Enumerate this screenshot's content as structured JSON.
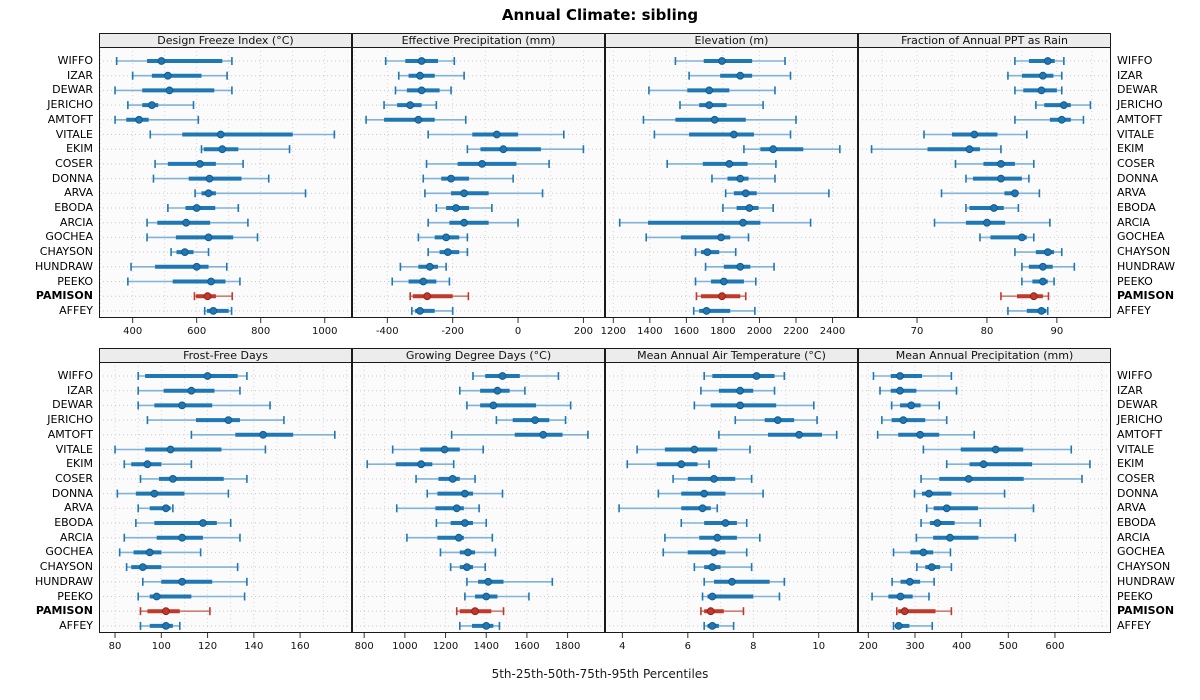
{
  "title": "Annual Climate: sibling",
  "footer": "5th-25th-50th-75th-95th Percentiles",
  "percentiles": [
    5,
    25,
    50,
    75,
    95
  ],
  "stations": [
    "WIFFO",
    "IZAR",
    "DEWAR",
    "JERICHO",
    "AMTOFT",
    "VITALE",
    "EKIM",
    "COSER",
    "DONNA",
    "ARVA",
    "EBODA",
    "ARCIA",
    "GOCHEA",
    "CHAYSON",
    "HUNDRAW",
    "PEEKO",
    "PAMISON",
    "AFFEY"
  ],
  "highlight_station": "PAMISON",
  "colors": {
    "blue": "#1f77b4",
    "blue_dark": "#145a8c",
    "blue_light": "#7fb3d9",
    "red": "#c0392b",
    "red_dark": "#8e241b",
    "red_light": "#d07d74",
    "grid": "#d6d6d6",
    "guide": "#c9c9c9",
    "strip_bg": "#ececec",
    "panel_bg": "#fbfbfb",
    "border": "#1a1a1a"
  },
  "chart_data": [
    {
      "type": "percentile-interval",
      "title": "Design Freeze Index (°C)",
      "xlim": [
        298,
        1082
      ],
      "xticks": [
        400,
        600,
        800,
        1000
      ],
      "grid_step": 100,
      "values": [
        [
          350,
          445,
          490,
          680,
          710
        ],
        [
          400,
          460,
          510,
          615,
          695
        ],
        [
          345,
          430,
          515,
          655,
          710
        ],
        [
          385,
          430,
          460,
          480,
          590
        ],
        [
          345,
          380,
          420,
          450,
          605
        ],
        [
          455,
          555,
          675,
          900,
          1030
        ],
        [
          615,
          622,
          680,
          730,
          890
        ],
        [
          470,
          510,
          610,
          660,
          745
        ],
        [
          465,
          575,
          640,
          740,
          825
        ],
        [
          595,
          615,
          637,
          660,
          940
        ],
        [
          510,
          565,
          600,
          658,
          730
        ],
        [
          445,
          477,
          567,
          642,
          760
        ],
        [
          445,
          535,
          637,
          714,
          790
        ],
        [
          520,
          537,
          563,
          590,
          637
        ],
        [
          395,
          470,
          600,
          637,
          694
        ],
        [
          385,
          525,
          645,
          690,
          735
        ],
        [
          593,
          598,
          634,
          660,
          711
        ],
        [
          625,
          632,
          652,
          700,
          709
        ]
      ]
    },
    {
      "type": "percentile-interval",
      "title": "Effective Precipitation (mm)",
      "xlim": [
        -505,
        263
      ],
      "xticks": [
        -400,
        -200,
        0,
        200
      ],
      "grid_step": 100,
      "values": [
        [
          -405,
          -345,
          -295,
          -245,
          -195
        ],
        [
          -365,
          -335,
          -300,
          -255,
          -165
        ],
        [
          -375,
          -340,
          -295,
          -240,
          -205
        ],
        [
          -410,
          -370,
          -330,
          -295,
          -250
        ],
        [
          -465,
          -410,
          -305,
          -255,
          -160
        ],
        [
          -275,
          -140,
          -65,
          0,
          140
        ],
        [
          -155,
          -115,
          -45,
          70,
          200
        ],
        [
          -280,
          -185,
          -110,
          -5,
          95
        ],
        [
          -290,
          -235,
          -205,
          -150,
          -15
        ],
        [
          -285,
          -205,
          -165,
          -90,
          75
        ],
        [
          -250,
          -220,
          -190,
          -150,
          -80
        ],
        [
          -275,
          -210,
          -165,
          -90,
          0
        ],
        [
          -305,
          -255,
          -220,
          -180,
          -155
        ],
        [
          -275,
          -240,
          -215,
          -180,
          -155
        ],
        [
          -360,
          -305,
          -270,
          -245,
          -220
        ],
        [
          -385,
          -335,
          -290,
          -250,
          -210
        ],
        [
          -330,
          -322,
          -278,
          -200,
          -152
        ],
        [
          -325,
          -315,
          -300,
          -255,
          -200
        ]
      ]
    },
    {
      "type": "percentile-interval",
      "title": "Elevation (m)",
      "xlim": [
        1160,
        2534
      ],
      "xticks": [
        1200,
        1400,
        1600,
        1800,
        2000,
        2200,
        2400
      ],
      "grid_step": 200,
      "values": [
        [
          1540,
          1695,
          1795,
          1960,
          2140
        ],
        [
          1615,
          1785,
          1895,
          1960,
          2170
        ],
        [
          1395,
          1605,
          1725,
          1835,
          2085
        ],
        [
          1565,
          1670,
          1725,
          1820,
          2020
        ],
        [
          1365,
          1540,
          1755,
          1925,
          2200
        ],
        [
          1425,
          1615,
          1860,
          1970,
          2170
        ],
        [
          1915,
          2005,
          2075,
          2240,
          2440
        ],
        [
          1495,
          1690,
          1835,
          1935,
          2090
        ],
        [
          1740,
          1825,
          1895,
          1940,
          2085
        ],
        [
          1815,
          1860,
          1925,
          1985,
          2380
        ],
        [
          1800,
          1875,
          1945,
          1995,
          2075
        ],
        [
          1235,
          1390,
          1910,
          2005,
          2280
        ],
        [
          1380,
          1570,
          1790,
          1840,
          1940
        ],
        [
          1650,
          1680,
          1715,
          1780,
          1870
        ],
        [
          1705,
          1805,
          1895,
          1950,
          2080
        ],
        [
          1650,
          1735,
          1805,
          1915,
          1980
        ],
        [
          1655,
          1680,
          1795,
          1895,
          1925
        ],
        [
          1640,
          1670,
          1710,
          1840,
          1975
        ]
      ]
    },
    {
      "type": "percentile-interval",
      "title": "Fraction of Annual PPT as Rain",
      "xlim": [
        61.7,
        97.6
      ],
      "xticks": [
        70,
        80,
        90
      ],
      "grid_step": 5,
      "values": [
        [
          84,
          86,
          88.7,
          89.7,
          91
        ],
        [
          83,
          85,
          88,
          89.5,
          90.7
        ],
        [
          84,
          85.2,
          87.8,
          90,
          90.7
        ],
        [
          87,
          88.2,
          91,
          92,
          94.8
        ],
        [
          84,
          89,
          90.7,
          92,
          93.8
        ],
        [
          71,
          75,
          78.2,
          81.5,
          85.7
        ],
        [
          63.5,
          71.5,
          77.5,
          79,
          82
        ],
        [
          75.5,
          79.5,
          82,
          84,
          86.7
        ],
        [
          77,
          78,
          82,
          85,
          86
        ],
        [
          73.5,
          82.5,
          84,
          84.5,
          87.5
        ],
        [
          77,
          77.5,
          81,
          82.4,
          84.5
        ],
        [
          72.5,
          77,
          80,
          82.6,
          89
        ],
        [
          79,
          80.5,
          85,
          85.7,
          86.7
        ],
        [
          84,
          87,
          88.7,
          89.6,
          90.7
        ],
        [
          85,
          86,
          88,
          89.4,
          92.5
        ],
        [
          85,
          86.5,
          88,
          88.7,
          89.6
        ],
        [
          82,
          84.3,
          86.7,
          88,
          88.8
        ],
        [
          83,
          85.7,
          87.8,
          88.5,
          88.7
        ]
      ]
    },
    {
      "type": "percentile-interval",
      "title": "Frost-Free Days",
      "xlim": [
        73.5,
        182
      ],
      "xticks": [
        80,
        100,
        120,
        140,
        160
      ],
      "grid_step": 10,
      "values": [
        [
          90,
          93,
          120,
          133,
          137
        ],
        [
          90,
          101,
          113,
          123,
          134
        ],
        [
          90,
          97,
          109,
          122,
          147
        ],
        [
          94,
          115,
          129,
          134,
          153
        ],
        [
          113,
          132,
          144,
          157,
          175
        ],
        [
          80,
          93,
          104,
          126,
          145
        ],
        [
          84,
          87,
          94,
          100,
          113
        ],
        [
          91,
          99,
          105,
          127,
          137
        ],
        [
          81,
          89,
          97,
          110,
          129
        ],
        [
          90,
          95,
          102,
          104,
          105
        ],
        [
          89,
          97,
          118,
          124,
          130
        ],
        [
          84,
          98,
          109,
          118,
          134
        ],
        [
          82,
          88,
          95,
          100,
          117
        ],
        [
          85,
          87,
          92,
          100,
          133
        ],
        [
          92,
          100,
          109,
          122,
          137
        ],
        [
          90,
          95,
          98,
          113,
          136
        ],
        [
          91,
          94,
          102,
          108,
          121
        ],
        [
          91,
          95,
          102,
          105,
          108
        ]
      ]
    },
    {
      "type": "percentile-interval",
      "title": "Growing Degree Days (°C)",
      "xlim": [
        745,
        1979
      ],
      "xticks": [
        800,
        1000,
        1200,
        1400,
        1600,
        1800
      ],
      "grid_step": 100,
      "values": [
        [
          1335,
          1395,
          1480,
          1565,
          1755
        ],
        [
          1270,
          1370,
          1455,
          1515,
          1590
        ],
        [
          1305,
          1370,
          1435,
          1645,
          1815
        ],
        [
          1450,
          1530,
          1640,
          1710,
          1790
        ],
        [
          1230,
          1540,
          1680,
          1775,
          1900
        ],
        [
          940,
          1075,
          1195,
          1270,
          1385
        ],
        [
          815,
          955,
          1080,
          1135,
          1240
        ],
        [
          1055,
          1165,
          1235,
          1270,
          1345
        ],
        [
          1110,
          1160,
          1295,
          1335,
          1480
        ],
        [
          960,
          1150,
          1255,
          1290,
          1365
        ],
        [
          1155,
          1225,
          1295,
          1335,
          1400
        ],
        [
          1010,
          1160,
          1265,
          1290,
          1430
        ],
        [
          1175,
          1270,
          1310,
          1345,
          1445
        ],
        [
          1225,
          1270,
          1305,
          1335,
          1395
        ],
        [
          1305,
          1360,
          1410,
          1485,
          1725
        ],
        [
          1295,
          1345,
          1400,
          1455,
          1610
        ],
        [
          1255,
          1270,
          1345,
          1425,
          1485
        ],
        [
          1270,
          1330,
          1400,
          1435,
          1465
        ]
      ]
    },
    {
      "type": "percentile-interval",
      "title": "Mean Annual Air Temperature (°C)",
      "xlim": [
        3.5,
        11.17
      ],
      "xticks": [
        4,
        6,
        8,
        10
      ],
      "grid_step": 1,
      "values": [
        [
          6.5,
          6.75,
          8.1,
          8.65,
          8.95
        ],
        [
          6.4,
          6.95,
          7.6,
          8.0,
          8.65
        ],
        [
          6.2,
          6.7,
          7.6,
          8.7,
          9.85
        ],
        [
          7.45,
          8.35,
          8.75,
          9.25,
          9.95
        ],
        [
          6.95,
          8.45,
          9.4,
          10.1,
          10.55
        ],
        [
          4.45,
          5.3,
          6.2,
          6.9,
          7.9
        ],
        [
          4.15,
          5.05,
          5.8,
          6.3,
          6.65
        ],
        [
          5.55,
          6.0,
          6.8,
          7.45,
          7.95
        ],
        [
          5.1,
          5.8,
          6.5,
          7.15,
          8.3
        ],
        [
          3.9,
          5.8,
          6.45,
          6.7,
          6.9
        ],
        [
          5.8,
          6.5,
          7.15,
          7.5,
          7.8
        ],
        [
          5.3,
          6.35,
          6.9,
          7.5,
          8.2
        ],
        [
          5.25,
          6.0,
          6.8,
          7.15,
          7.8
        ],
        [
          6.2,
          6.5,
          6.75,
          7.0,
          7.95
        ],
        [
          6.5,
          6.8,
          7.35,
          8.5,
          8.95
        ],
        [
          6.45,
          6.6,
          6.75,
          8.0,
          8.8
        ],
        [
          6.4,
          6.5,
          6.7,
          7.1,
          7.7
        ],
        [
          6.5,
          6.6,
          6.75,
          6.95,
          7.4
        ]
      ]
    },
    {
      "type": "percentile-interval",
      "title": "Mean Annual Precipitation (mm)",
      "xlim": [
        180,
        718
      ],
      "xticks": [
        200,
        300,
        400,
        500,
        600
      ],
      "grid_step": 50,
      "values": [
        [
          211,
          248,
          268,
          315,
          378
        ],
        [
          225,
          248,
          268,
          303,
          389
        ],
        [
          250,
          268,
          292,
          312,
          352
        ],
        [
          229,
          250,
          275,
          322,
          368
        ],
        [
          220,
          264,
          311,
          352,
          427
        ],
        [
          318,
          398,
          473,
          532,
          635
        ],
        [
          368,
          417,
          447,
          551,
          675
        ],
        [
          313,
          352,
          415,
          533,
          658
        ],
        [
          299,
          315,
          330,
          378,
          492
        ],
        [
          325,
          340,
          368,
          435,
          554
        ],
        [
          313,
          332,
          348,
          385,
          440
        ],
        [
          303,
          339,
          375,
          436,
          515
        ],
        [
          254,
          290,
          318,
          339,
          376
        ],
        [
          304,
          322,
          336,
          354,
          378
        ],
        [
          251,
          269,
          289,
          311,
          341
        ],
        [
          208,
          243,
          269,
          295,
          330
        ],
        [
          261,
          264,
          278,
          344,
          378
        ],
        [
          254,
          258,
          265,
          288,
          337
        ]
      ]
    }
  ]
}
